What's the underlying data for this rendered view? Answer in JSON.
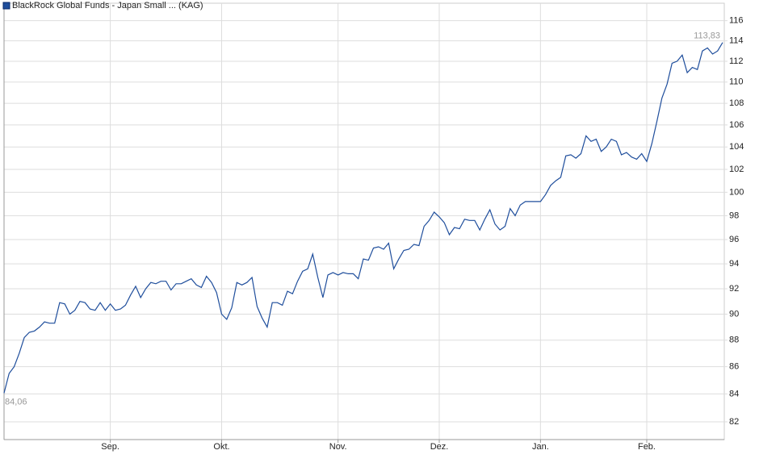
{
  "chart_data": {
    "type": "line",
    "categories": [
      null,
      null,
      null,
      null,
      null,
      null,
      null,
      null,
      null,
      null,
      null,
      null,
      null,
      null,
      null,
      null,
      null,
      null,
      null,
      null,
      null,
      "Sep.",
      null,
      null,
      null,
      null,
      null,
      null,
      null,
      null,
      null,
      null,
      null,
      null,
      null,
      null,
      null,
      null,
      null,
      null,
      null,
      null,
      null,
      "Okt.",
      null,
      null,
      null,
      null,
      null,
      null,
      null,
      null,
      null,
      null,
      null,
      null,
      null,
      null,
      null,
      null,
      null,
      null,
      null,
      null,
      null,
      null,
      "Nov.",
      null,
      null,
      null,
      null,
      null,
      null,
      null,
      null,
      null,
      null,
      null,
      null,
      null,
      null,
      null,
      null,
      null,
      null,
      null,
      "Dez.",
      null,
      null,
      null,
      null,
      null,
      null,
      null,
      null,
      null,
      null,
      null,
      null,
      null,
      null,
      null,
      null,
      null,
      null,
      null,
      "Jan.",
      null,
      null,
      null,
      null,
      null,
      null,
      null,
      null,
      null,
      null,
      null,
      null,
      null,
      null,
      null,
      null,
      null,
      null,
      null,
      null,
      "Feb.",
      null,
      null,
      null,
      null,
      null,
      null,
      null,
      null,
      null,
      null,
      null,
      null,
      null,
      null,
      null
    ],
    "series": [
      {
        "name": "BlackRock Global Funds - Japan Small ... (KAG)",
        "color": "#1f4e9c",
        "values": [
          84.06,
          85.5,
          86,
          87,
          88.2,
          88.6,
          88.7,
          89,
          89.4,
          89.3,
          89.3,
          90.9,
          90.8,
          90,
          90.3,
          91,
          90.9,
          90.4,
          90.3,
          90.9,
          90.3,
          90.8,
          90.3,
          90.4,
          90.7,
          91.5,
          92.2,
          91.3,
          92,
          92.5,
          92.4,
          92.6,
          92.6,
          91.9,
          92.4,
          92.4,
          92.6,
          92.8,
          92.3,
          92.1,
          93,
          92.5,
          91.7,
          90,
          89.6,
          90.5,
          92.5,
          92.3,
          92.5,
          92.9,
          90.6,
          89.7,
          89,
          90.9,
          90.9,
          90.7,
          91.8,
          91.6,
          92.6,
          93.4,
          93.6,
          94.8,
          92.9,
          91.3,
          93.1,
          93.3,
          93.1,
          93.3,
          93.2,
          93.2,
          92.8,
          94.4,
          94.3,
          95.3,
          95.4,
          95.2,
          95.7,
          93.6,
          94.4,
          95.1,
          95.2,
          95.6,
          95.5,
          97.1,
          97.6,
          98.3,
          97.9,
          97.4,
          96.4,
          97,
          96.9,
          97.7,
          97.6,
          97.6,
          96.8,
          97.7,
          98.5,
          97.3,
          96.8,
          97.1,
          98.6,
          98,
          98.9,
          99.2,
          99.2,
          99.2,
          99.2,
          99.8,
          100.6,
          101,
          101.3,
          103.2,
          103.3,
          103,
          103.4,
          105,
          104.5,
          104.7,
          103.6,
          104,
          104.7,
          104.5,
          103.3,
          103.5,
          103.1,
          102.9,
          103.4,
          102.7,
          104.3,
          106.3,
          108.5,
          109.8,
          111.8,
          112,
          112.6,
          110.9,
          111.4,
          111.2,
          113,
          113.3,
          112.7,
          113,
          113.83
        ],
        "value_labels": [
          "84,06",
          null,
          null,
          null,
          null,
          null,
          null,
          null,
          null,
          null,
          null,
          null,
          null,
          null,
          null,
          null,
          null,
          null,
          null,
          null,
          null,
          null,
          null,
          null,
          null,
          null,
          null,
          null,
          null,
          null,
          null,
          null,
          null,
          null,
          null,
          null,
          null,
          null,
          null,
          null,
          null,
          null,
          null,
          null,
          null,
          null,
          null,
          null,
          null,
          null,
          null,
          null,
          null,
          null,
          null,
          null,
          null,
          null,
          null,
          null,
          null,
          null,
          null,
          null,
          null,
          null,
          null,
          null,
          null,
          null,
          null,
          null,
          null,
          null,
          null,
          null,
          null,
          null,
          null,
          null,
          null,
          null,
          null,
          null,
          null,
          null,
          null,
          null,
          null,
          null,
          null,
          null,
          null,
          null,
          null,
          null,
          null,
          null,
          null,
          null,
          null,
          null,
          null,
          null,
          null,
          null,
          null,
          null,
          null,
          null,
          null,
          null,
          null,
          null,
          null,
          null,
          null,
          null,
          null,
          null,
          null,
          null,
          null,
          null,
          null,
          null,
          null,
          null,
          null,
          null,
          null,
          null,
          null,
          null,
          null,
          null,
          null,
          null,
          null,
          null,
          null,
          null,
          "113,83"
        ]
      }
    ],
    "ylim": [
      80.75,
      116.7
    ],
    "yticks": [
      82,
      84,
      86,
      88,
      90,
      92,
      94,
      96,
      98,
      100,
      102,
      104,
      106,
      108,
      110,
      112,
      114,
      116
    ],
    "log_scale": true,
    "grid": true,
    "legend": "top-left"
  }
}
